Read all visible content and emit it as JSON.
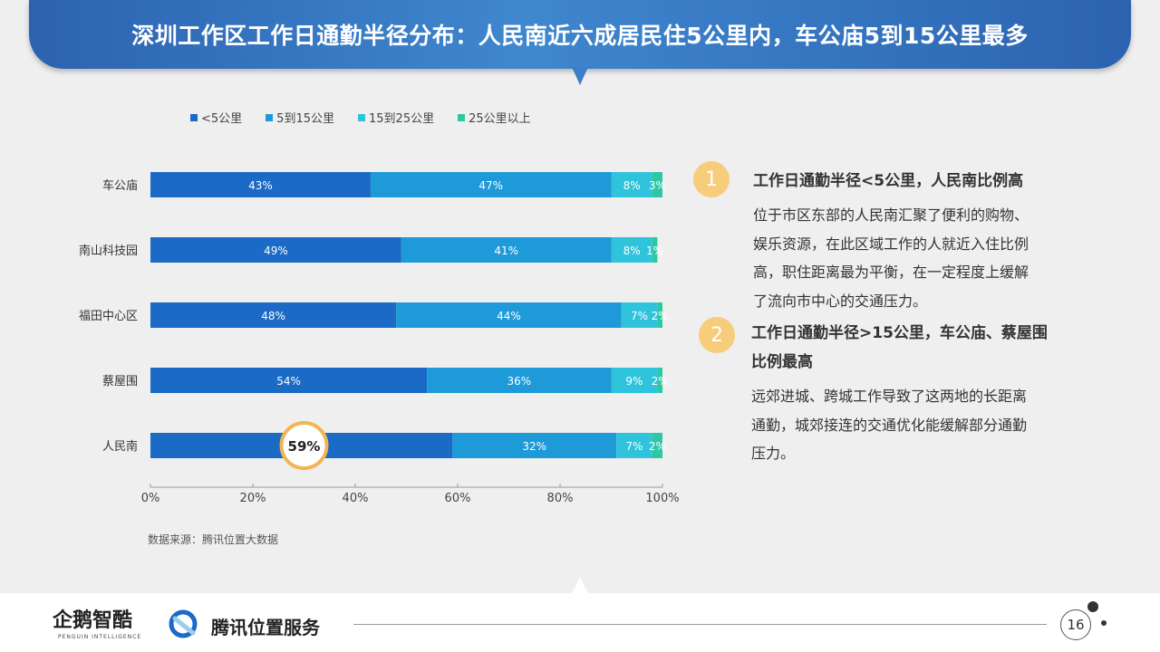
{
  "title": "深圳工作区工作日通勤半径分布：人民南近六成居民住5公里内，车公庙5到15公里最多",
  "source": "数据来源：腾讯位置大数据",
  "colors": {
    "series": [
      "#1a6ac6",
      "#1f9ad8",
      "#2fc3dc",
      "#2ec7a4"
    ],
    "badge": "#f7cc7b",
    "highlight_ring": "#f2b552"
  },
  "chart_data": {
    "type": "bar",
    "orientation": "horizontal",
    "stacked": true,
    "categories": [
      "车公庙",
      "南山科技园",
      "福田中心区",
      "蔡屋围",
      "人民南"
    ],
    "series": [
      {
        "name": "<5公里",
        "values": [
          43,
          49,
          48,
          54,
          59
        ]
      },
      {
        "name": "5到15公里",
        "values": [
          47,
          41,
          44,
          36,
          32
        ]
      },
      {
        "name": "15到25公里",
        "values": [
          8,
          8,
          7,
          9,
          7
        ]
      },
      {
        "name": "25公里以上",
        "values": [
          3,
          1,
          2,
          2,
          2
        ]
      }
    ],
    "x_ticks": [
      "0%",
      "20%",
      "40%",
      "60%",
      "80%",
      "100%"
    ],
    "xlim": [
      0,
      100
    ],
    "legend_position": "top",
    "highlight": {
      "category": "人民南",
      "series": "<5公里",
      "label": "59%"
    }
  },
  "notes": [
    {
      "badge": "1",
      "heading_lines": [
        "工作日通勤半径<5公里，人民南比例高"
      ],
      "body_lines": [
        "位于市区东部的人民南汇聚了便利的购物、",
        "娱乐资源，在此区域工作的人就近入住比例",
        "高，职住距离最为平衡，在一定程度上缓解",
        "了流向市中心的交通压力。"
      ]
    },
    {
      "badge": "2",
      "heading_lines": [
        "工作日通勤半径>15公里，车公庙、蔡屋围",
        "比例最高"
      ],
      "body_lines": [
        "远郊进城、跨城工作导致了这两地的长距离",
        "通勤，城郊接连的交通优化能缓解部分通勤",
        "压力。"
      ]
    }
  ],
  "footer": {
    "logo_penguin": "企鹅智酷",
    "logo_penguin_sub": "PENGUIN INTELLIGENCE",
    "logo_tencent": "腾讯位置服务",
    "page_number": "16"
  }
}
